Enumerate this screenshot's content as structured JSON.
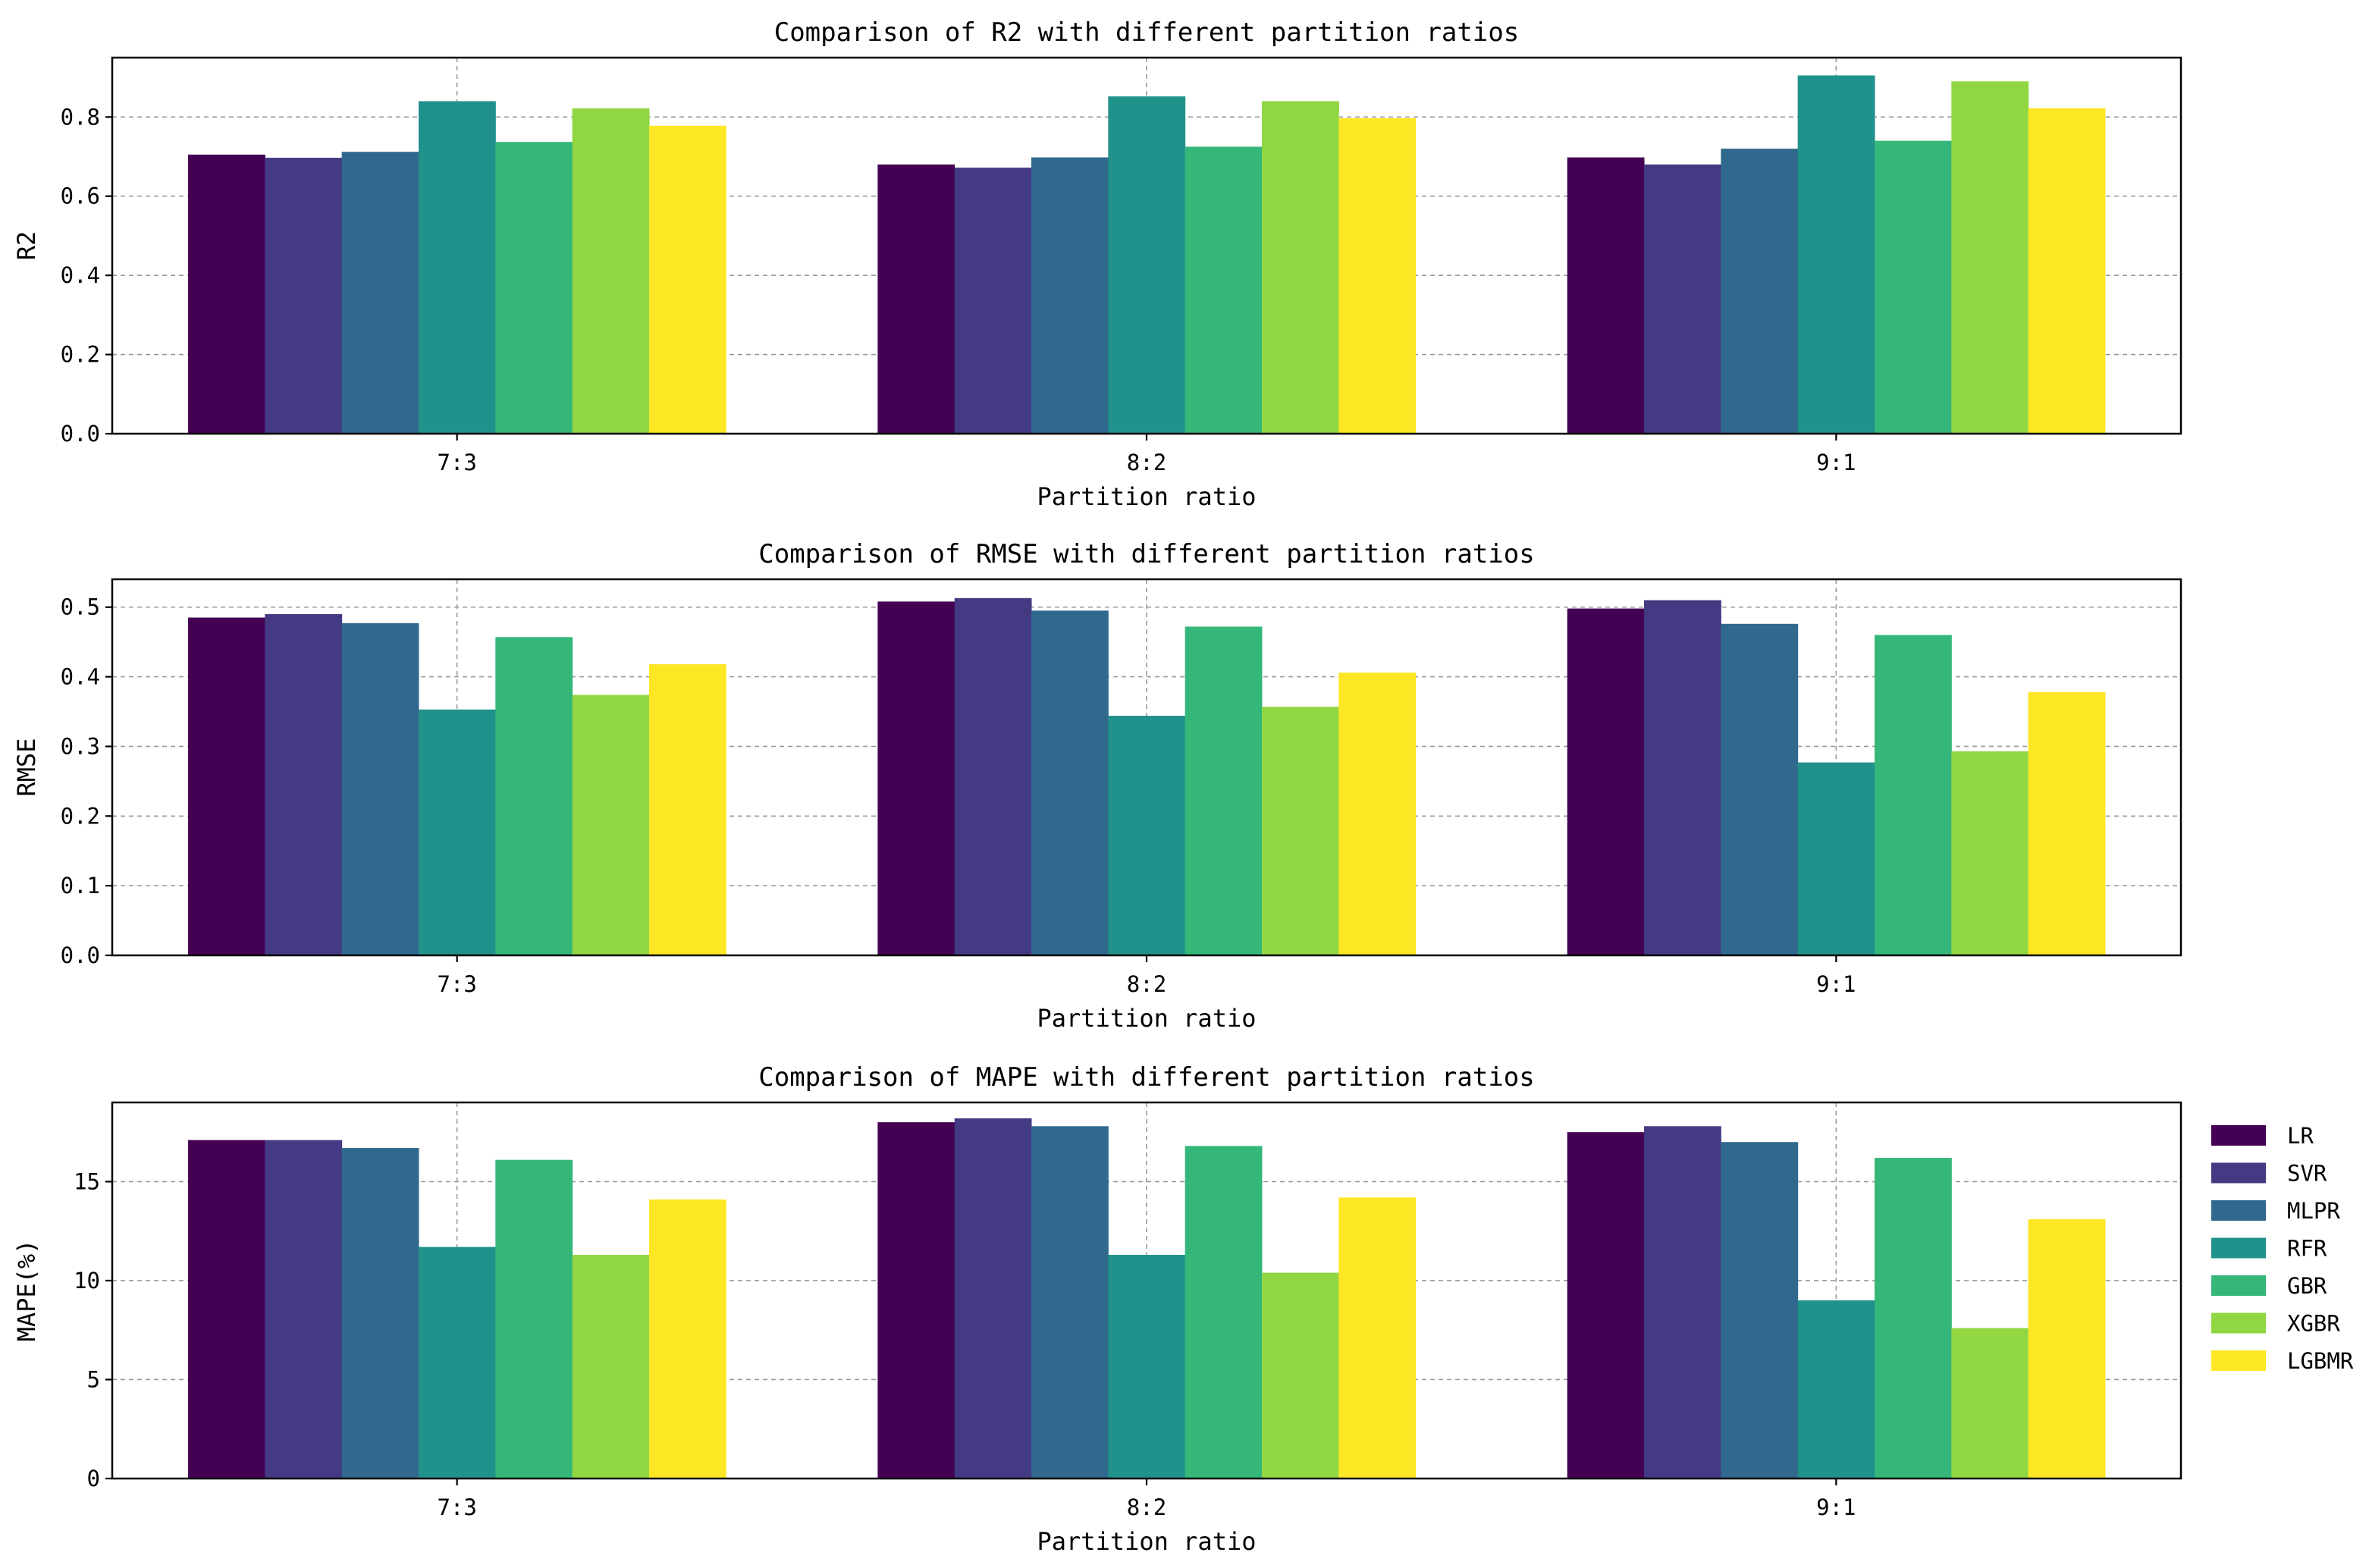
{
  "chart_data": [
    {
      "type": "bar",
      "title": "Comparison of R2 with different partition ratios",
      "xlabel": "Partition ratio",
      "ylabel": "R2",
      "categories": [
        "7:3",
        "8:2",
        "9:1"
      ],
      "ylim": [
        0,
        0.95
      ],
      "yticks": [
        0.0,
        0.2,
        0.4,
        0.6,
        0.8
      ],
      "ytick_labels": [
        "0.0",
        "0.2",
        "0.4",
        "0.6",
        "0.8"
      ],
      "grid": true,
      "series": [
        {
          "name": "LR",
          "values": [
            0.705,
            0.68,
            0.698
          ]
        },
        {
          "name": "SVR",
          "values": [
            0.697,
            0.672,
            0.68
          ]
        },
        {
          "name": "MLPR",
          "values": [
            0.712,
            0.698,
            0.72
          ]
        },
        {
          "name": "RFR",
          "values": [
            0.84,
            0.852,
            0.905
          ]
        },
        {
          "name": "GBR",
          "values": [
            0.737,
            0.725,
            0.74
          ]
        },
        {
          "name": "XGBR",
          "values": [
            0.822,
            0.84,
            0.89
          ]
        },
        {
          "name": "LGBMR",
          "values": [
            0.778,
            0.797,
            0.822
          ]
        }
      ]
    },
    {
      "type": "bar",
      "title": "Comparison of RMSE with different partition ratios",
      "xlabel": "Partition ratio",
      "ylabel": "RMSE",
      "categories": [
        "7:3",
        "8:2",
        "9:1"
      ],
      "ylim": [
        0,
        0.54
      ],
      "yticks": [
        0.0,
        0.1,
        0.2,
        0.3,
        0.4,
        0.5
      ],
      "ytick_labels": [
        "0.0",
        "0.1",
        "0.2",
        "0.3",
        "0.4",
        "0.5"
      ],
      "grid": true,
      "series": [
        {
          "name": "LR",
          "values": [
            0.485,
            0.508,
            0.498
          ]
        },
        {
          "name": "SVR",
          "values": [
            0.49,
            0.513,
            0.51
          ]
        },
        {
          "name": "MLPR",
          "values": [
            0.477,
            0.495,
            0.476
          ]
        },
        {
          "name": "RFR",
          "values": [
            0.353,
            0.344,
            0.277
          ]
        },
        {
          "name": "GBR",
          "values": [
            0.457,
            0.472,
            0.46
          ]
        },
        {
          "name": "XGBR",
          "values": [
            0.374,
            0.357,
            0.293
          ]
        },
        {
          "name": "LGBMR",
          "values": [
            0.418,
            0.406,
            0.378
          ]
        }
      ]
    },
    {
      "type": "bar",
      "title": "Comparison of MAPE with different partition ratios",
      "xlabel": "Partition ratio",
      "ylabel": "MAPE(%)",
      "categories": [
        "7:3",
        "8:2",
        "9:1"
      ],
      "ylim": [
        0,
        19
      ],
      "yticks": [
        0,
        5,
        10,
        15
      ],
      "ytick_labels": [
        "0",
        "5",
        "10",
        "15"
      ],
      "grid": true,
      "legend_position": "right",
      "series": [
        {
          "name": "LR",
          "values": [
            17.1,
            18.0,
            17.5
          ]
        },
        {
          "name": "SVR",
          "values": [
            17.1,
            18.2,
            17.8
          ]
        },
        {
          "name": "MLPR",
          "values": [
            16.7,
            17.8,
            17.0
          ]
        },
        {
          "name": "RFR",
          "values": [
            11.7,
            11.3,
            9.0
          ]
        },
        {
          "name": "GBR",
          "values": [
            16.1,
            16.8,
            16.2
          ]
        },
        {
          "name": "XGBR",
          "values": [
            11.3,
            10.4,
            7.6
          ]
        },
        {
          "name": "LGBMR",
          "values": [
            14.1,
            14.2,
            13.1
          ]
        }
      ]
    }
  ],
  "legend": {
    "position": "right",
    "items": [
      {
        "label": "LR",
        "color": "#440154"
      },
      {
        "label": "SVR",
        "color": "#443983"
      },
      {
        "label": "MLPR",
        "color": "#31688e"
      },
      {
        "label": "RFR",
        "color": "#21918c"
      },
      {
        "label": "GBR",
        "color": "#35b779"
      },
      {
        "label": "XGBR",
        "color": "#90d743"
      },
      {
        "label": "LGBMR",
        "color": "#fde725"
      }
    ]
  }
}
